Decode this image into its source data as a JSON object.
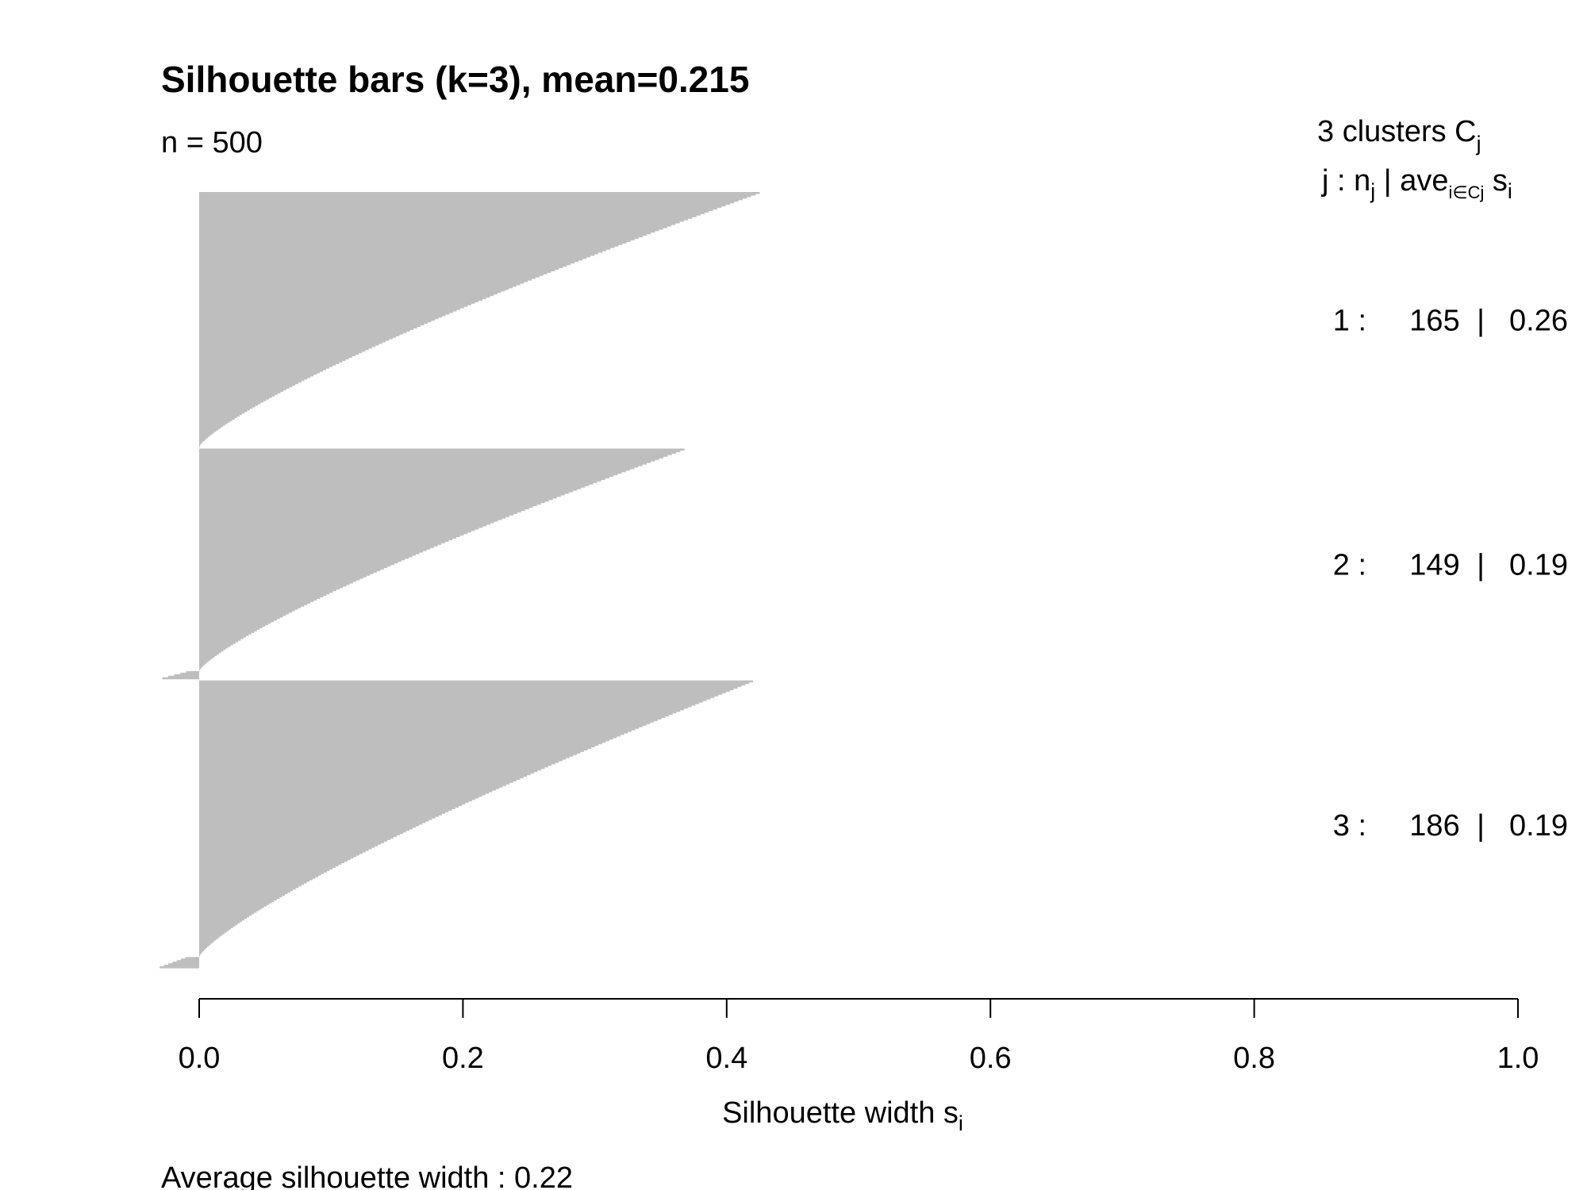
{
  "chart_data": {
    "type": "bar",
    "orientation": "horizontal",
    "title": "Silhouette bars (k=3), mean=0.215",
    "subtitle": "n = 500",
    "xlabel": "Silhouette width s",
    "xlabel_subscript": "i",
    "xlim": [
      0,
      1
    ],
    "ticks": [
      "0.0",
      "0.2",
      "0.4",
      "0.6",
      "0.8",
      "1.0"
    ],
    "bar_color": "#bebebe",
    "legend": {
      "header": "3  clusters  C",
      "header_sub": "j",
      "subheader_parts": [
        "j :  n",
        "j",
        " | ave",
        "i∈Cj",
        "  s",
        "i"
      ]
    },
    "clusters": [
      {
        "label": "1 :",
        "n": "165",
        "sep": "|",
        "avg": "0.26",
        "size": 165,
        "mean": 0.26,
        "max": 0.425,
        "min": 0.0,
        "neg_count": 0,
        "neg_min": 0
      },
      {
        "label": "2 :",
        "n": "149",
        "sep": "|",
        "avg": "0.19",
        "size": 149,
        "mean": 0.19,
        "max": 0.368,
        "min": 0.0,
        "neg_count": 5,
        "neg_min": -0.028
      },
      {
        "label": "3 :",
        "n": "186",
        "sep": "|",
        "avg": "0.19",
        "size": 186,
        "mean": 0.19,
        "max": 0.42,
        "min": 0.0,
        "neg_count": 7,
        "neg_min": -0.03
      }
    ],
    "footer": "Average silhouette width :  0.22"
  }
}
